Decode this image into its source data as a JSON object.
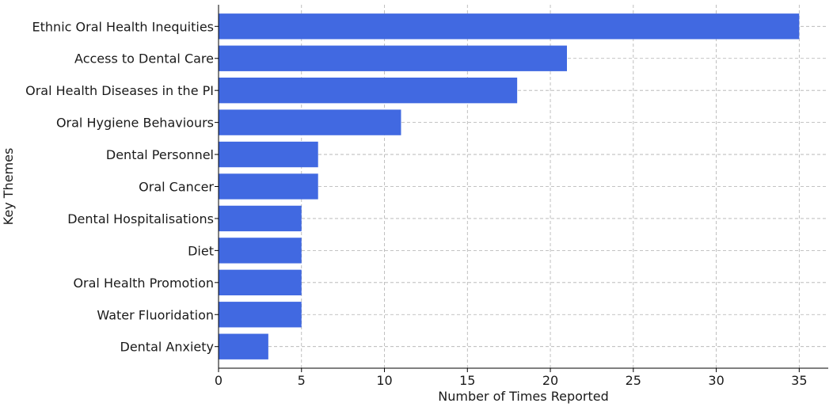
{
  "chart_data": {
    "type": "bar",
    "orientation": "horizontal",
    "categories": [
      "Ethnic Oral Health Inequities",
      "Access to Dental Care",
      "Oral Health Diseases in the PI",
      "Oral Hygiene Behaviours",
      "Dental Personnel",
      "Oral Cancer",
      "Dental Hospitalisations",
      "Diet",
      "Oral Health Promotion",
      "Water Fluoridation",
      "Dental Anxiety"
    ],
    "values": [
      35,
      21,
      18,
      11,
      6,
      6,
      5,
      5,
      5,
      5,
      3
    ],
    "xlabel": "Number of Times Reported",
    "ylabel": "Key Themes",
    "xlim": [
      0,
      36.75
    ],
    "xticks": [
      0,
      5,
      10,
      15,
      20,
      25,
      30,
      35
    ],
    "grid": true,
    "bar_color": "#4169e1"
  }
}
